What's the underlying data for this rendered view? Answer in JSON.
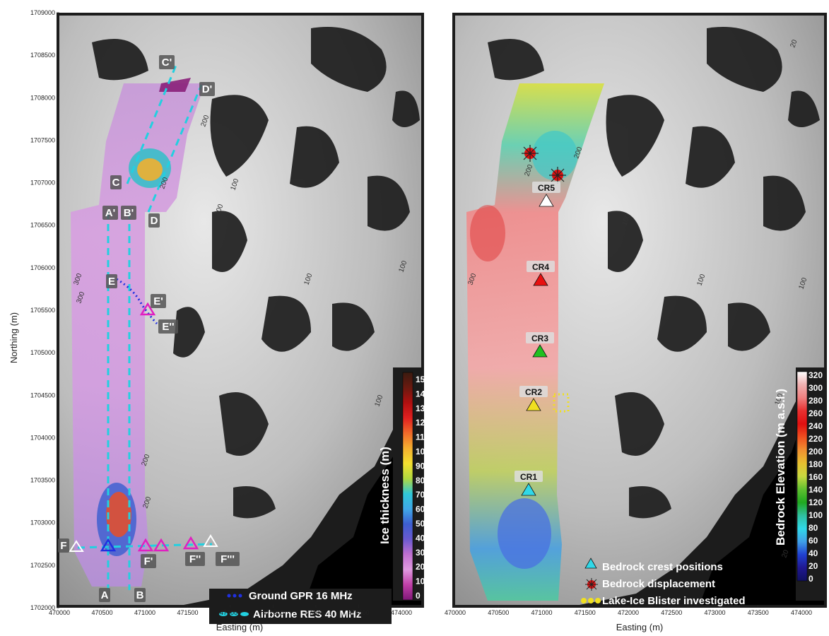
{
  "x_axis_title": "Easting (m)",
  "y_axis_title": "Northing (m)",
  "y_ticks": [
    "1709000",
    "1708500",
    "1708000",
    "1707500",
    "1707000",
    "1706500",
    "1706000",
    "1705500",
    "1705000",
    "1704500",
    "1704000",
    "1703500",
    "1703000",
    "1702500",
    "1702000"
  ],
  "left_x_ticks": [
    "470000",
    "470500",
    "471000",
    "471500",
    "472000",
    "472500",
    "473000",
    "473500",
    "474000"
  ],
  "right_x_ticks": [
    "470000",
    "470500",
    "471000",
    "471500",
    "472000",
    "472500",
    "473000",
    "473500",
    "474000"
  ],
  "left_map": {
    "profile_labels": [
      "A",
      "B",
      "A'",
      "B'",
      "C",
      "D",
      "C'",
      "D'",
      "E",
      "E'",
      "E''",
      "F",
      "F'",
      "F''",
      "F'''"
    ],
    "contour_labels": [
      "200",
      "200",
      "200",
      "200",
      "300",
      "300",
      "100",
      "100",
      "100",
      "100",
      "200"
    ],
    "legend": {
      "gpr": "Ground GPR 16 MHz",
      "res": "Airborne RES 40 MHz"
    },
    "colorbar": {
      "title": "Ice thickness (m)",
      "ticks": [
        "150",
        "140",
        "130",
        "120",
        "110",
        "100",
        "90",
        "80",
        "70",
        "60",
        "50",
        "40",
        "30",
        "20",
        "10",
        "0"
      ],
      "colors": [
        "#3b1b10",
        "#6a1a10",
        "#b01010",
        "#e02020",
        "#f06a2a",
        "#f5b030",
        "#f4e030",
        "#b0d840",
        "#30c8d8",
        "#40a8e8",
        "#3d5ed0",
        "#6a5ad0",
        "#c070d0",
        "#e09ae0",
        "#c040a8",
        "#801878"
      ]
    }
  },
  "right_map": {
    "crest_labels": [
      "CR5",
      "CR4",
      "CR3",
      "CR2",
      "CR1"
    ],
    "crest_colors": [
      "#ffffff",
      "#e81010",
      "#20c020",
      "#f0e020",
      "#30d8e8"
    ],
    "contour_labels": [
      "200",
      "200",
      "300",
      "100",
      "100",
      "100",
      "100",
      "20",
      "20"
    ],
    "legend": {
      "crest": "Bedrock crest positions",
      "displacement": "Bedrock displacement",
      "blister": "Lake-Ice Blister investigated"
    },
    "colorbar": {
      "title": "Bedrock Elevation (m a.s.l.)",
      "ticks": [
        "320",
        "300",
        "280",
        "260",
        "240",
        "220",
        "200",
        "180",
        "160",
        "140",
        "120",
        "100",
        "80",
        "60",
        "40",
        "20",
        "0"
      ],
      "colors": [
        "#ffffff",
        "#f0b0b0",
        "#f08080",
        "#e83030",
        "#e01010",
        "#f05020",
        "#f09030",
        "#e8c030",
        "#c8d840",
        "#60c030",
        "#20a820",
        "#30c0a0",
        "#30d8e8",
        "#40a0e8",
        "#2040d0",
        "#201890",
        "#101060"
      ]
    }
  }
}
